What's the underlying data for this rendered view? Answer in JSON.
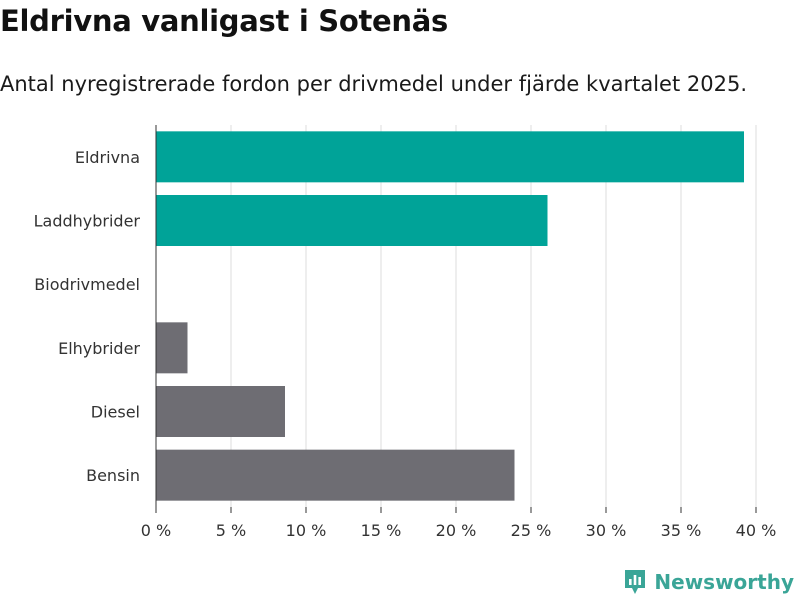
{
  "title": "Eldrivna vanligast i Sotenäs",
  "subtitle": "Antal nyregistrerade fordon per drivmedel under fjärde kvartalet 2025.",
  "brand": {
    "name": "Newsworthy",
    "icon": "newsworthy-logo-icon"
  },
  "colors": {
    "highlight": "#00a398",
    "neutral": "#6e6d73",
    "grid": "#dcdcdc",
    "brand": "#3aa597"
  },
  "chart_data": {
    "type": "bar",
    "orientation": "horizontal",
    "categories": [
      "Eldrivna",
      "Laddhybrider",
      "Biodrivmedel",
      "Elhybrider",
      "Diesel",
      "Bensin"
    ],
    "values": [
      39.2,
      26.1,
      0,
      2.1,
      8.6,
      23.9
    ],
    "highlight": [
      true,
      true,
      false,
      false,
      false,
      false
    ],
    "xlim": [
      0,
      40
    ],
    "xticks": [
      0,
      5,
      10,
      15,
      20,
      25,
      30,
      35,
      40
    ],
    "xtick_labels": [
      "0 %",
      "5 %",
      "10 %",
      "15 %",
      "20 %",
      "25 %",
      "30 %",
      "35 %",
      "40 %"
    ],
    "xlabel": "",
    "ylabel": "",
    "grid": true
  }
}
